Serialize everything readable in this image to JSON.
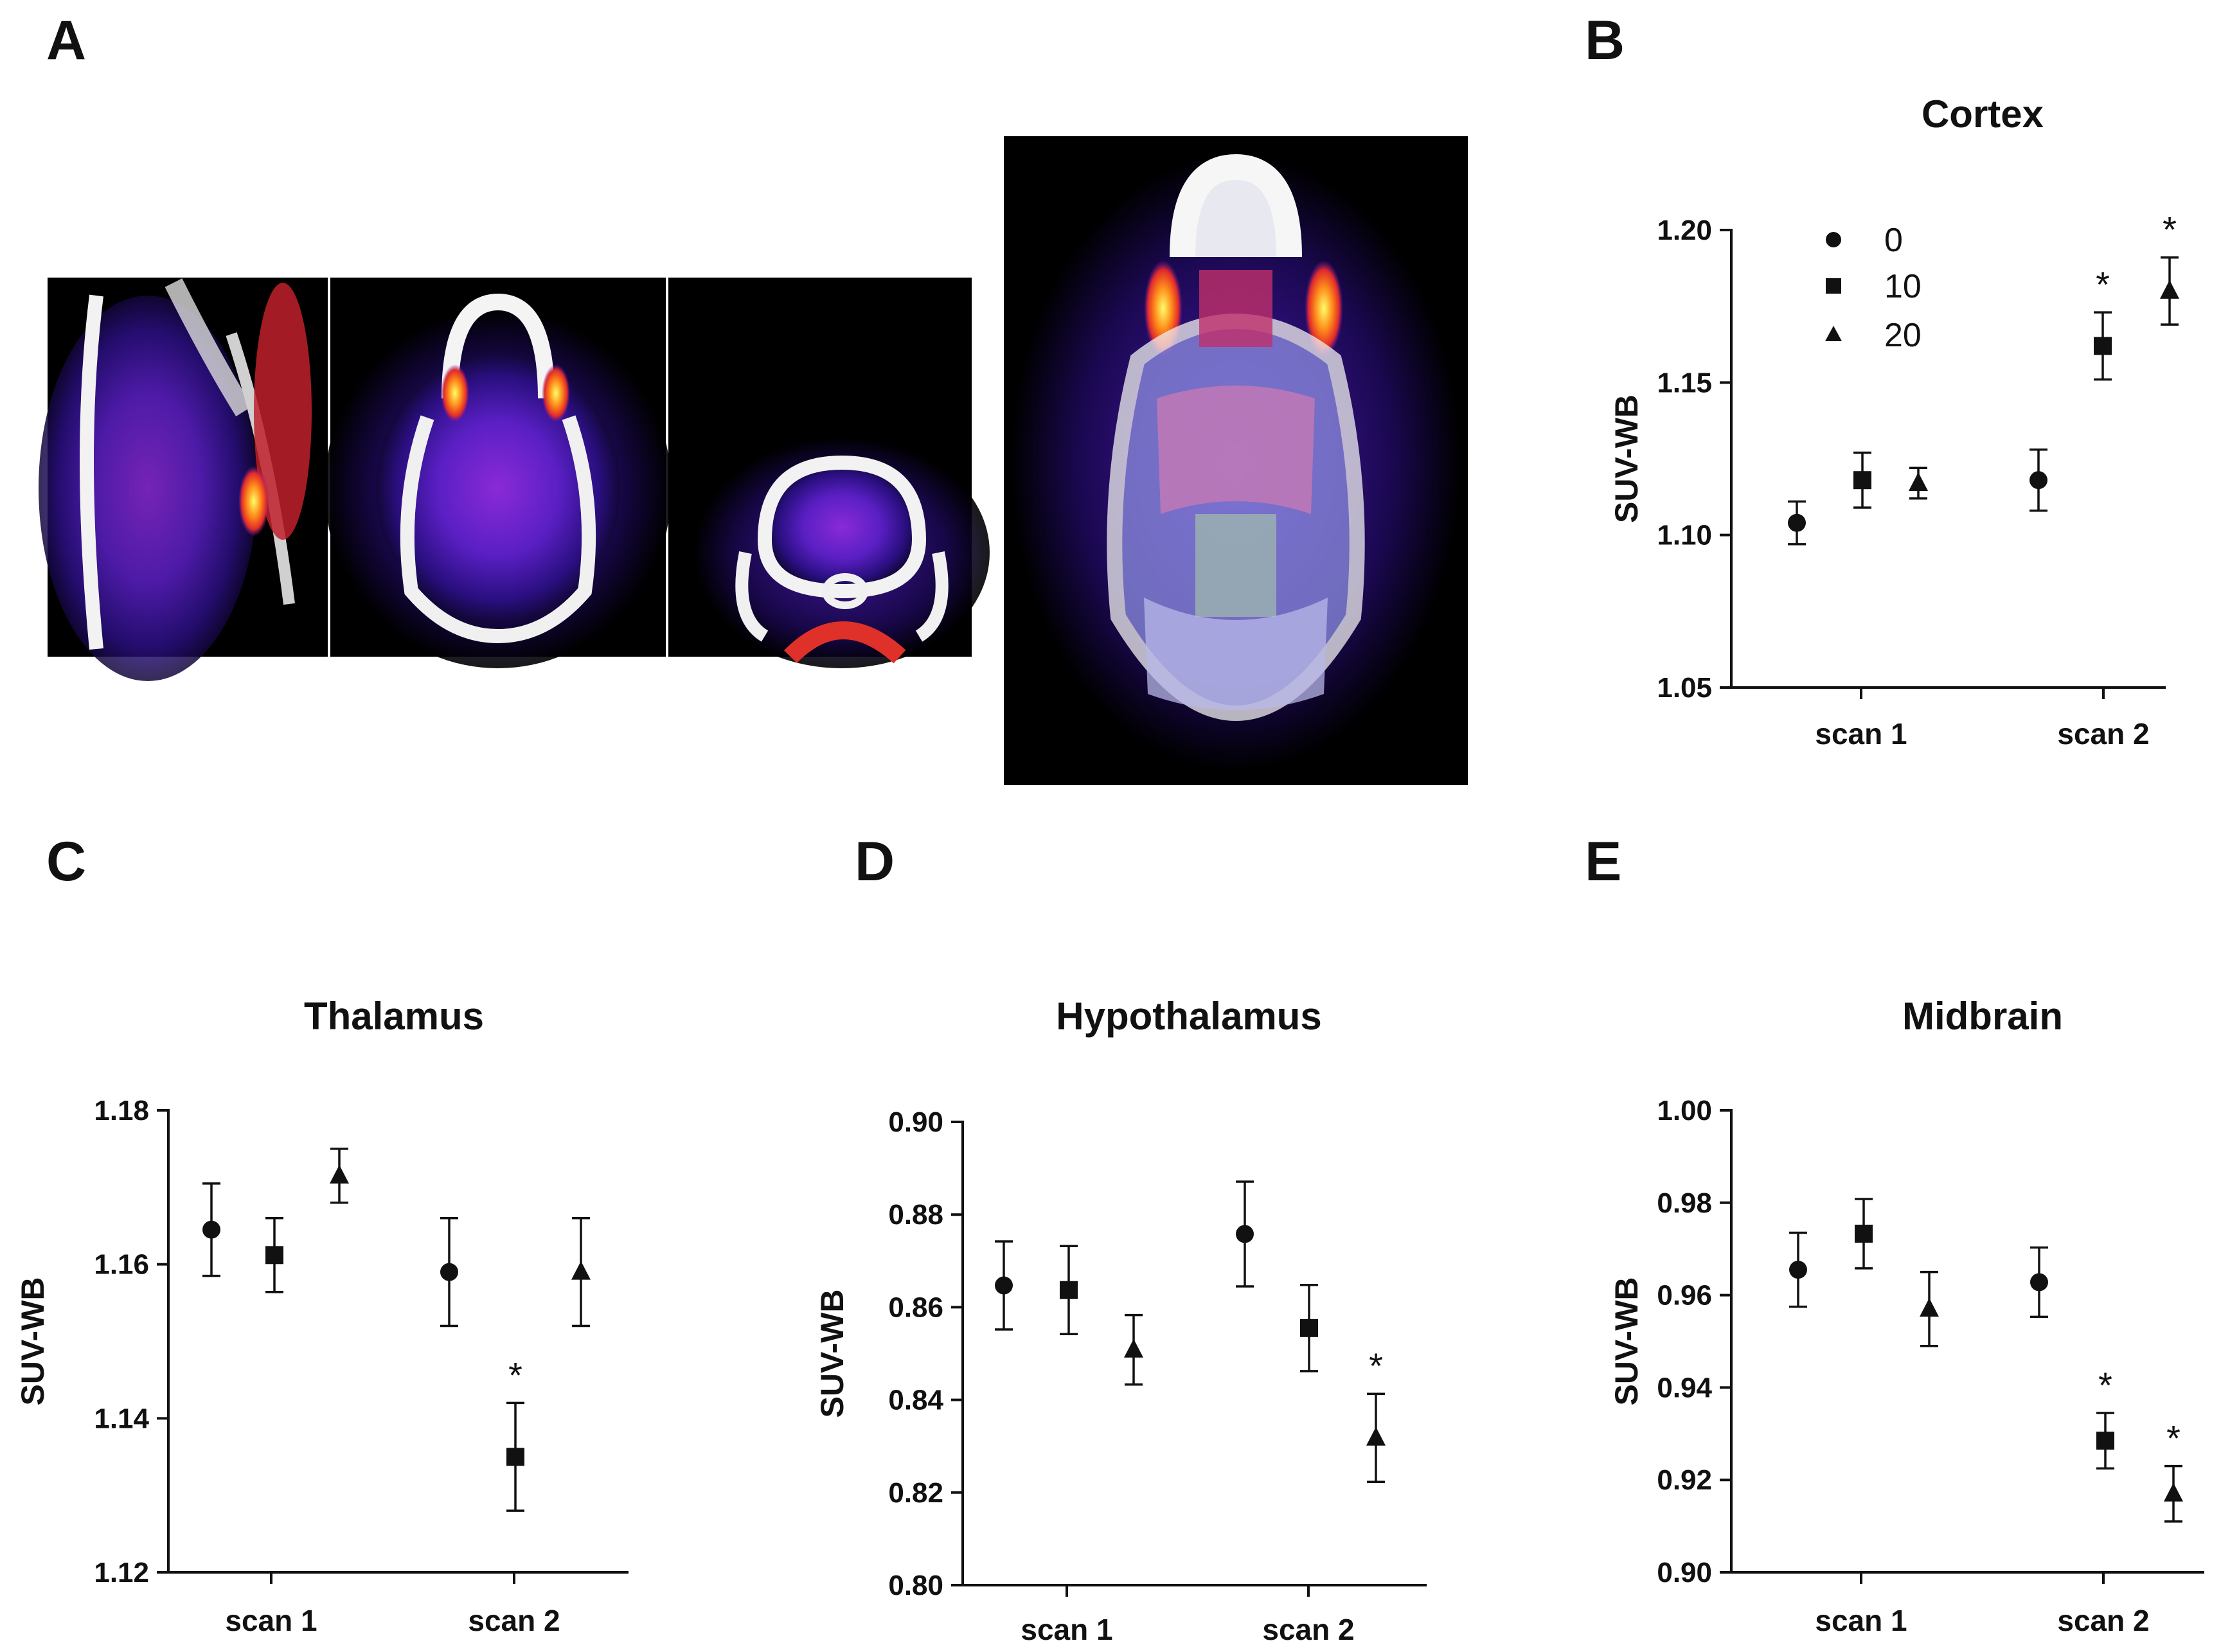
{
  "panels": {
    "a": "A",
    "b": "B",
    "c": "C",
    "d": "D",
    "e": "E"
  },
  "legend": {
    "items": [
      {
        "label": "0",
        "marker": "circle"
      },
      {
        "label": "10",
        "marker": "square"
      },
      {
        "label": "20",
        "marker": "triangle"
      }
    ]
  },
  "colors": {
    "ink": "#111111",
    "background": "#ffffff"
  },
  "chart_data": [
    {
      "id": "cortex",
      "type": "scatter",
      "title": "Cortex",
      "ylabel": "SUV-WB",
      "categories": [
        "scan 1",
        "scan 2"
      ],
      "ylim": [
        1.05,
        1.2
      ],
      "yticks": [
        "1.05",
        "1.10",
        "1.15",
        "1.20"
      ],
      "series": [
        {
          "name": "0",
          "marker": "circle",
          "values": [
            1.104,
            1.118
          ],
          "errors": [
            0.007,
            0.01
          ],
          "sig": [
            "",
            ""
          ]
        },
        {
          "name": "10",
          "marker": "square",
          "values": [
            1.118,
            1.162
          ],
          "errors": [
            0.009,
            0.011
          ],
          "sig": [
            "",
            "*"
          ]
        },
        {
          "name": "20",
          "marker": "triangle",
          "values": [
            1.117,
            1.18
          ],
          "errors": [
            0.005,
            0.011
          ],
          "sig": [
            "",
            "*"
          ]
        }
      ]
    },
    {
      "id": "thalamus",
      "type": "scatter",
      "title": "Thalamus",
      "ylabel": "SUV-WB",
      "categories": [
        "scan 1",
        "scan 2"
      ],
      "ylim": [
        1.12,
        1.18
      ],
      "yticks": [
        "1.12",
        "1.14",
        "1.16",
        "1.18"
      ],
      "series": [
        {
          "name": "0",
          "marker": "circle",
          "values": [
            1.1645,
            1.159
          ],
          "errors": [
            0.006,
            0.007
          ],
          "sig": [
            "",
            ""
          ]
        },
        {
          "name": "10",
          "marker": "square",
          "values": [
            1.1612,
            1.135
          ],
          "errors": [
            0.0048,
            0.007
          ],
          "sig": [
            "",
            "*"
          ]
        },
        {
          "name": "20",
          "marker": "triangle",
          "values": [
            1.1715,
            1.159
          ],
          "errors": [
            0.0035,
            0.007
          ],
          "sig": [
            "",
            ""
          ]
        }
      ]
    },
    {
      "id": "hypothalamus",
      "type": "scatter",
      "title": "Hypothalamus",
      "ylabel": "SUV-WB",
      "categories": [
        "scan 1",
        "scan 2"
      ],
      "ylim": [
        0.8,
        0.9
      ],
      "yticks": [
        "0.80",
        "0.82",
        "0.84",
        "0.86",
        "0.88",
        "0.90"
      ],
      "series": [
        {
          "name": "0",
          "marker": "circle",
          "values": [
            0.8647,
            0.8758
          ],
          "errors": [
            0.0095,
            0.0113
          ],
          "sig": [
            "",
            ""
          ]
        },
        {
          "name": "10",
          "marker": "square",
          "values": [
            0.8637,
            0.8555
          ],
          "errors": [
            0.0095,
            0.0093
          ],
          "sig": [
            "",
            ""
          ]
        },
        {
          "name": "20",
          "marker": "triangle",
          "values": [
            0.8508,
            0.8318
          ],
          "errors": [
            0.0075,
            0.0095
          ],
          "sig": [
            "",
            "*"
          ]
        }
      ]
    },
    {
      "id": "midbrain",
      "type": "scatter",
      "title": "Midbrain",
      "ylabel": "SUV-WB",
      "categories": [
        "scan 1",
        "scan 2"
      ],
      "ylim": [
        0.9,
        1.0
      ],
      "yticks": [
        "0.90",
        "0.92",
        "0.94",
        "0.96",
        "0.98",
        "1.00"
      ],
      "series": [
        {
          "name": "0",
          "marker": "circle",
          "values": [
            0.9655,
            0.9628
          ],
          "errors": [
            0.008,
            0.0075
          ],
          "sig": [
            "",
            ""
          ]
        },
        {
          "name": "10",
          "marker": "square",
          "values": [
            0.9733,
            0.9285
          ],
          "errors": [
            0.0075,
            0.006
          ],
          "sig": [
            "",
            "*"
          ]
        },
        {
          "name": "20",
          "marker": "triangle",
          "values": [
            0.957,
            0.917
          ],
          "errors": [
            0.008,
            0.006
          ],
          "sig": [
            "",
            "*"
          ]
        }
      ]
    }
  ]
}
